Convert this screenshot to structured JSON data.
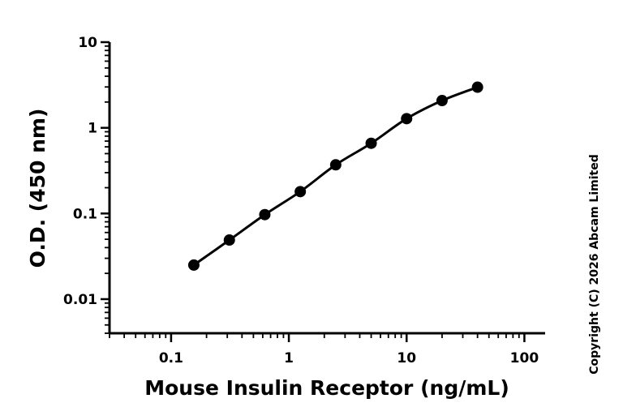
{
  "chart_data": {
    "type": "scatter",
    "xlabel": "Mouse Insulin Receptor (ng/mL)",
    "ylabel": "O.D. (450 nm)",
    "x_scale": "log",
    "y_scale": "log",
    "xlim": [
      0.03,
      150
    ],
    "ylim": [
      0.004,
      10
    ],
    "x_ticks": [
      0.1,
      1,
      10,
      100
    ],
    "x_tick_labels": [
      "0.1",
      "1",
      "10",
      "100"
    ],
    "y_ticks": [
      0.01,
      0.1,
      1,
      10
    ],
    "y_tick_labels": [
      "0.01",
      "0.1",
      "1",
      "10"
    ],
    "grid": false,
    "legend": "none",
    "series": [
      {
        "x": [
          0.156,
          0.3125,
          0.625,
          1.25,
          2.5,
          5,
          10,
          20,
          40
        ],
        "y": [
          0.025,
          0.049,
          0.097,
          0.18,
          0.37,
          0.66,
          1.28,
          2.08,
          2.98
        ],
        "color": "#000000",
        "fit_line": true
      }
    ],
    "annotation": "Copyright (C) 2026 Abcam Limited"
  }
}
